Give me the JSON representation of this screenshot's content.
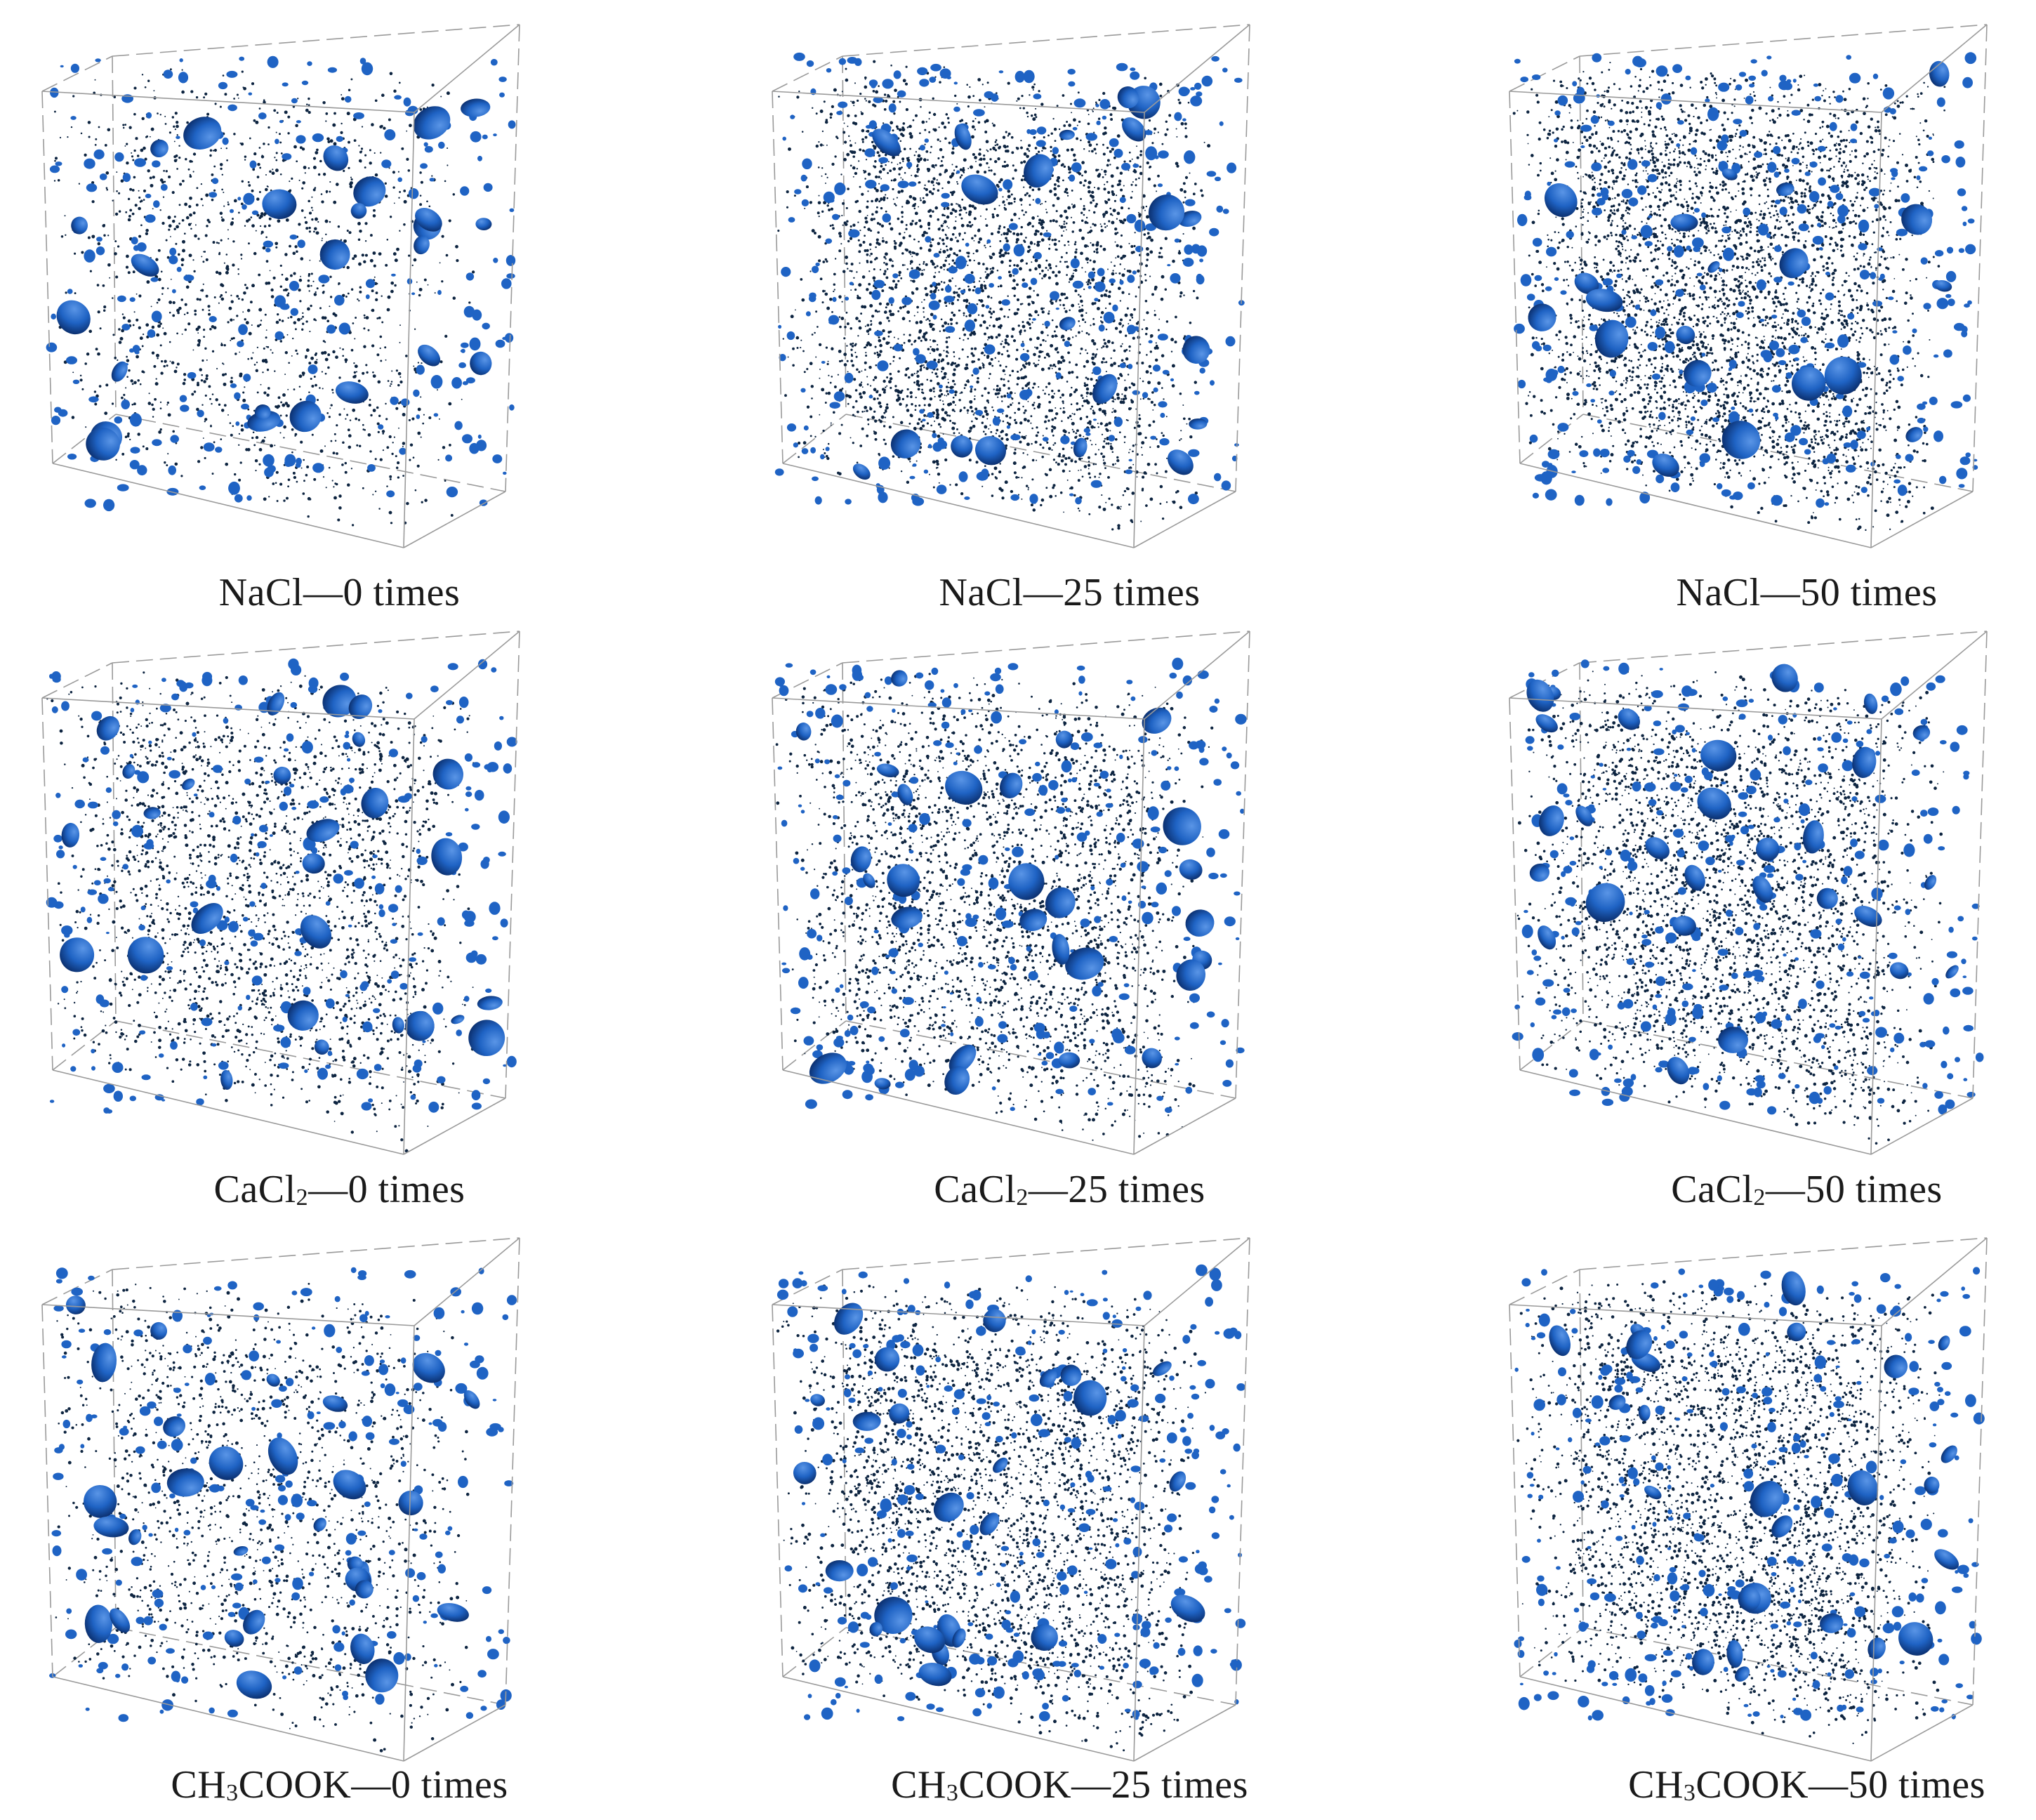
{
  "panels": [
    {
      "id": "nacl-0",
      "material": "NaCl",
      "material_parts": [
        "NaCl"
      ],
      "cycles_label": "0 times",
      "density": 0.55,
      "large_pores": 0.9
    },
    {
      "id": "nacl-25",
      "material": "NaCl",
      "material_parts": [
        "NaCl"
      ],
      "cycles_label": "25 times",
      "density": 1.25,
      "large_pores": 0.7
    },
    {
      "id": "nacl-50",
      "material": "NaCl",
      "material_parts": [
        "NaCl"
      ],
      "cycles_label": "50 times",
      "density": 1.5,
      "large_pores": 0.7
    },
    {
      "id": "cacl2-0",
      "material": "CaCl2",
      "material_parts": [
        "CaCl",
        "2"
      ],
      "cycles_label": "0 times",
      "density": 0.85,
      "large_pores": 1.0
    },
    {
      "id": "cacl2-25",
      "material": "CaCl2",
      "material_parts": [
        "CaCl",
        "2"
      ],
      "cycles_label": "25 times",
      "density": 1.05,
      "large_pores": 1.0
    },
    {
      "id": "cacl2-50",
      "material": "CaCl2",
      "material_parts": [
        "CaCl",
        "2"
      ],
      "cycles_label": "50 times",
      "density": 1.15,
      "large_pores": 1.0
    },
    {
      "id": "ch3cook-0",
      "material": "CH3COOK",
      "material_parts": [
        "CH",
        "3",
        "COOK"
      ],
      "cycles_label": "0 times",
      "density": 0.6,
      "large_pores": 1.1
    },
    {
      "id": "ch3cook-25",
      "material": "CH3COOK",
      "material_parts": [
        "CH",
        "3",
        "COOK"
      ],
      "cycles_label": "25 times",
      "density": 1.1,
      "large_pores": 0.9
    },
    {
      "id": "ch3cook-50",
      "material": "CH3COOK",
      "material_parts": [
        "CH",
        "3",
        "COOK"
      ],
      "cycles_label": "50 times",
      "density": 1.2,
      "large_pores": 0.9
    }
  ],
  "separator": "—",
  "colors": {
    "pore_fill": "#1f63c4",
    "pore_shadow": "#0b2f6e",
    "pore_highlight": "#5a95e6",
    "speck": "#0d2440",
    "box_edge": "#9a9a9a"
  }
}
